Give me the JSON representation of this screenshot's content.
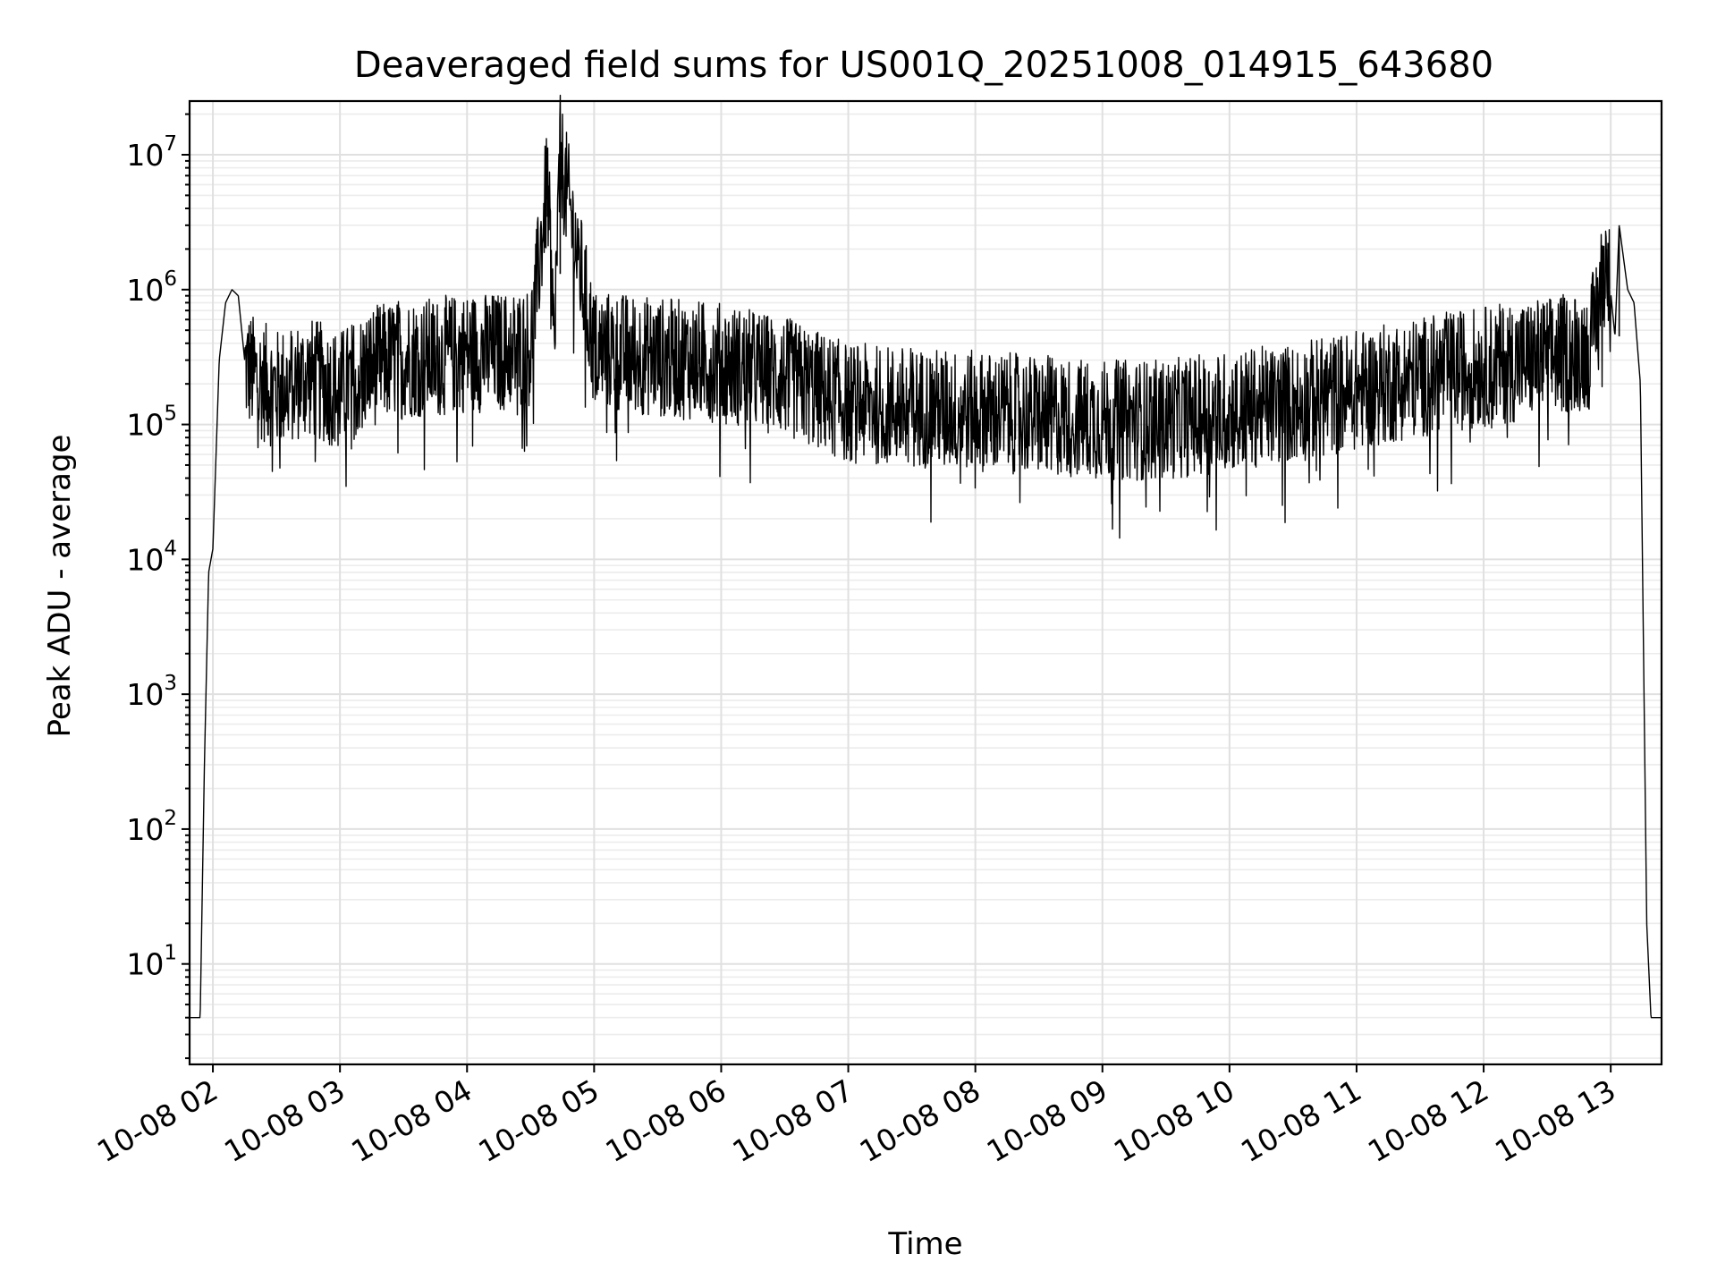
{
  "chart_data": {
    "type": "line",
    "title": "Deaveraged field sums for US001Q_20251008_014915_643680",
    "xlabel": "Time",
    "ylabel": "Peak ADU - average",
    "yscale": "log",
    "grid": "on (major and minor)",
    "legend": "none",
    "xlim": [
      "2025-10-08 01:49",
      "2025-10-08 13:24"
    ],
    "ylim": [
      1.8,
      25000000
    ],
    "x_ticks": [
      "10-08 02",
      "10-08 03",
      "10-08 04",
      "10-08 05",
      "10-08 06",
      "10-08 07",
      "10-08 08",
      "10-08 09",
      "10-08 10",
      "10-08 11",
      "10-08 12",
      "10-08 13"
    ],
    "y_ticks": [
      {
        "value": 10,
        "base": "10",
        "exp": "1"
      },
      {
        "value": 100,
        "base": "10",
        "exp": "2"
      },
      {
        "value": 1000,
        "base": "10",
        "exp": "3"
      },
      {
        "value": 10000,
        "base": "10",
        "exp": "4"
      },
      {
        "value": 100000,
        "base": "10",
        "exp": "5"
      },
      {
        "value": 1000000,
        "base": "10",
        "exp": "6"
      },
      {
        "value": 10000000,
        "base": "10",
        "exp": "7"
      }
    ],
    "series": [
      {
        "color": "#000000",
        "x": [
          "2025-10-08 01:49",
          "2025-10-08 01:54",
          "2025-10-08 01:56",
          "2025-10-08 01:58",
          "2025-10-08 02:00",
          "2025-10-08 02:03",
          "2025-10-08 02:06",
          "2025-10-08 02:09",
          "2025-10-08 02:12",
          "2025-10-08 02:15",
          "2025-10-08 02:20",
          "2025-10-08 02:30",
          "2025-10-08 02:45",
          "2025-10-08 03:00",
          "2025-10-08 03:15",
          "2025-10-08 03:30",
          "2025-10-08 03:45",
          "2025-10-08 04:00",
          "2025-10-08 04:15",
          "2025-10-08 04:30",
          "2025-10-08 04:38",
          "2025-10-08 04:41",
          "2025-10-08 04:44",
          "2025-10-08 05:00",
          "2025-10-08 05:30",
          "2025-10-08 06:00",
          "2025-10-08 06:30",
          "2025-10-08 07:00",
          "2025-10-08 07:30",
          "2025-10-08 08:00",
          "2025-10-08 08:30",
          "2025-10-08 09:00",
          "2025-10-08 09:30",
          "2025-10-08 10:00",
          "2025-10-08 10:30",
          "2025-10-08 11:00",
          "2025-10-08 11:30",
          "2025-10-08 12:00",
          "2025-10-08 12:30",
          "2025-10-08 12:50",
          "2025-10-08 12:58",
          "2025-10-08 13:02",
          "2025-10-08 13:04",
          "2025-10-08 13:08",
          "2025-10-08 13:11",
          "2025-10-08 13:14",
          "2025-10-08 13:17",
          "2025-10-08 13:19",
          "2025-10-08 13:24"
        ],
        "y": [
          4,
          4,
          300,
          8000,
          12000,
          300000,
          800000,
          1000000,
          900000,
          300000,
          250000,
          200000,
          250000,
          200000,
          300000,
          350000,
          350000,
          380000,
          380000,
          420000,
          7000000,
          450000,
          11000000,
          400000,
          350000,
          320000,
          250000,
          160000,
          150000,
          140000,
          130000,
          120000,
          120000,
          140000,
          160000,
          200000,
          250000,
          300000,
          350000,
          400000,
          2000000,
          450000,
          3000000,
          1000000,
          800000,
          200000,
          20,
          4,
          4
        ]
      }
    ]
  }
}
